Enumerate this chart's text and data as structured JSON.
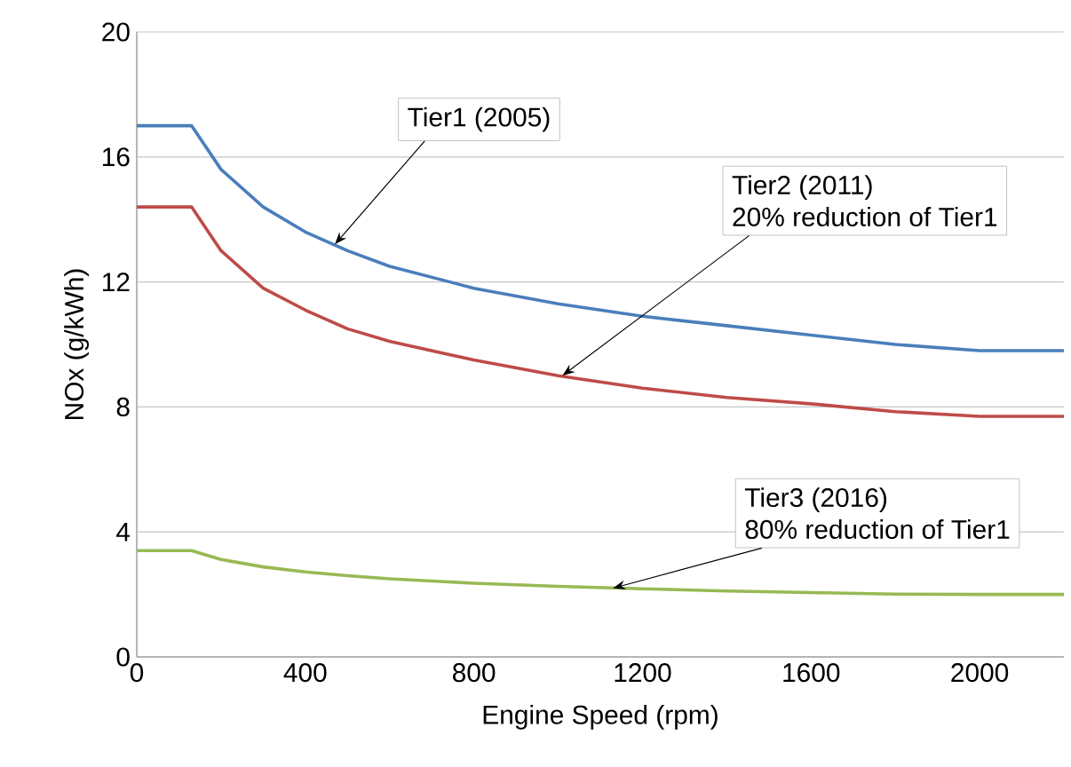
{
  "chart_data": {
    "type": "line",
    "xlabel": "Engine Speed (rpm)",
    "ylabel": "NOx (g/kWh)",
    "xlim": [
      0,
      2200
    ],
    "ylim": [
      0,
      20
    ],
    "xticks": [
      0,
      400,
      800,
      1200,
      1600,
      2000
    ],
    "yticks": [
      0,
      4,
      8,
      12,
      16,
      20
    ],
    "grid": "y",
    "marker": "none",
    "line_style": "solid",
    "series": [
      {
        "color": "#4a7ebb",
        "x": [
          0,
          130,
          200,
          300,
          400,
          500,
          600,
          800,
          1000,
          1200,
          1400,
          1600,
          1800,
          2000,
          2200
        ],
        "values": [
          17.0,
          17.0,
          15.6,
          14.4,
          13.6,
          13.0,
          12.5,
          11.8,
          11.3,
          10.9,
          10.6,
          10.3,
          10.0,
          9.8,
          9.8
        ]
      },
      {
        "color": "#be4b48",
        "x": [
          0,
          130,
          200,
          300,
          400,
          500,
          600,
          800,
          1000,
          1200,
          1400,
          1600,
          1800,
          2000,
          2200
        ],
        "values": [
          14.4,
          14.4,
          13.0,
          11.8,
          11.1,
          10.5,
          10.1,
          9.5,
          9.0,
          8.6,
          8.3,
          8.1,
          7.85,
          7.7,
          7.7
        ]
      },
      {
        "color": "#98b954",
        "x": [
          0,
          130,
          200,
          300,
          400,
          500,
          600,
          800,
          1000,
          1200,
          1400,
          1600,
          1800,
          2000,
          2200
        ],
        "values": [
          3.4,
          3.4,
          3.12,
          2.88,
          2.72,
          2.6,
          2.5,
          2.36,
          2.26,
          2.18,
          2.11,
          2.06,
          2.01,
          2.0,
          2.0
        ]
      }
    ],
    "annotations": [
      {
        "text": "Tier1 (2005)",
        "x": 470,
        "y": 13.2
      },
      "Tier2 (2011)",
      {
        "text": "20% reduction of Tier1",
        "x": 1010,
        "y": 9.0
      },
      "Tier3 (2016)",
      {
        "text": "80% reduction of Tier1",
        "x": 1130,
        "y": 2.2
      }
    ]
  }
}
